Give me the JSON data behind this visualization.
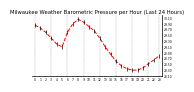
{
  "title": "Milwaukee Weather Barometric Pressure per Hour (Last 24 Hours)",
  "hours": [
    0,
    1,
    2,
    3,
    4,
    5,
    6,
    7,
    8,
    9,
    10,
    11,
    12,
    13,
    14,
    15,
    16,
    17,
    18,
    19,
    20,
    21,
    22,
    23
  ],
  "pressure": [
    29.85,
    29.75,
    29.6,
    29.4,
    29.2,
    29.1,
    29.6,
    29.9,
    30.05,
    29.95,
    29.8,
    29.65,
    29.4,
    29.1,
    28.85,
    28.6,
    28.45,
    28.35,
    28.3,
    28.3,
    28.38,
    28.52,
    28.65,
    28.8
  ],
  "line_color": "#ff0000",
  "marker_color": "#000000",
  "bg_color": "#ffffff",
  "ylim_min": 28.1,
  "ylim_max": 30.2,
  "ytick_values": [
    28.1,
    28.3,
    28.5,
    28.7,
    28.9,
    29.1,
    29.3,
    29.5,
    29.7,
    29.9,
    30.1
  ],
  "ytick_labels": [
    "28.10",
    "28.30",
    "28.50",
    "28.70",
    "28.90",
    "29.10",
    "29.30",
    "29.50",
    "29.70",
    "29.90",
    "30.10"
  ],
  "vgrid_positions": [
    0,
    3,
    6,
    9,
    12,
    15,
    18,
    21,
    23
  ],
  "title_fontsize": 3.8,
  "tick_fontsize": 2.2
}
